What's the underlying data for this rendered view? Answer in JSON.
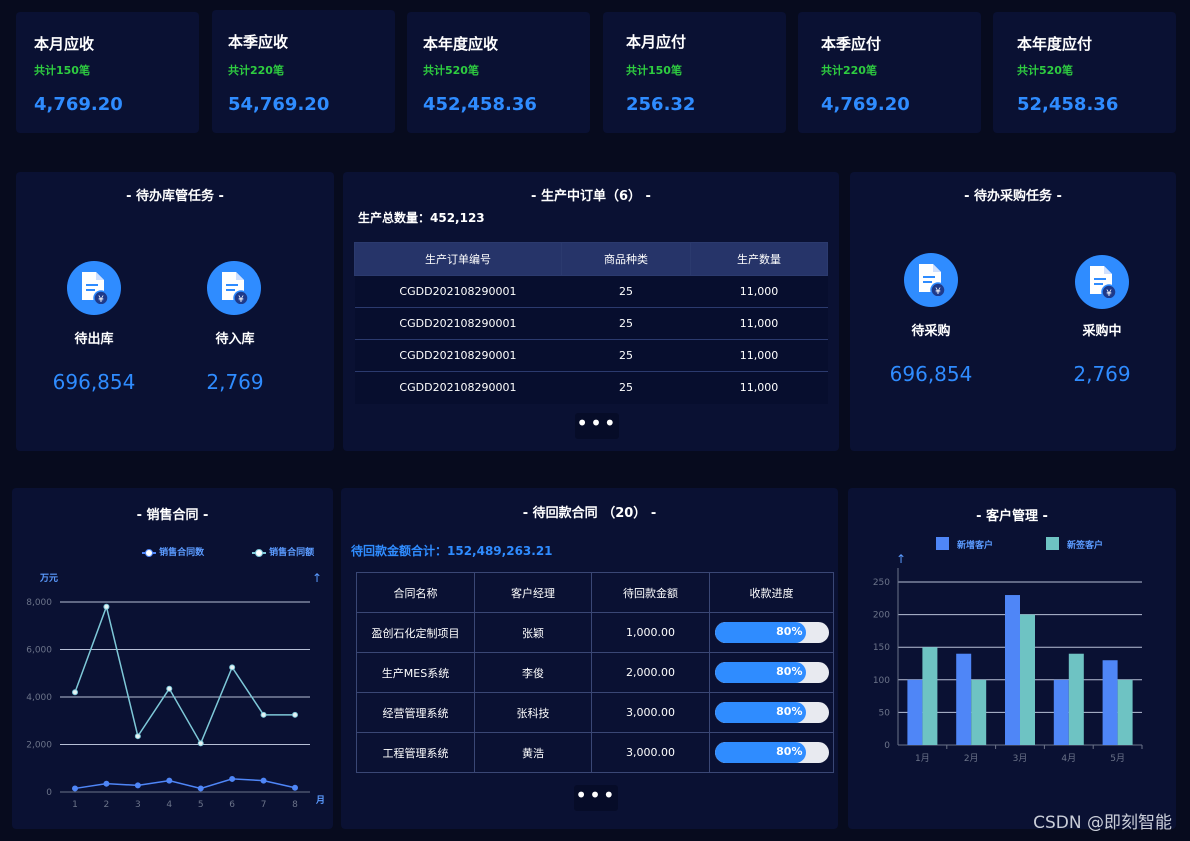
{
  "kpis": [
    {
      "title": "本月应收",
      "sub": "共计150笔",
      "value": "4,769.20"
    },
    {
      "title": "本季应收",
      "sub": "共计220笔",
      "value": "54,769.20"
    },
    {
      "title": "本年度应收",
      "sub": "共计520笔",
      "value": "452,458.36"
    },
    {
      "title": "本月应付",
      "sub": "共计150笔",
      "value": "256.32"
    },
    {
      "title": "本季应付",
      "sub": "共计220笔",
      "value": "4,769.20"
    },
    {
      "title": "本年度应付",
      "sub": "共计520笔",
      "value": "52,458.36"
    }
  ],
  "warehouse": {
    "title": "- 待办库管任务 -",
    "items": [
      {
        "label": "待出库",
        "value": "696,854",
        "icon": "document-yen-icon"
      },
      {
        "label": "待入库",
        "value": "2,769",
        "icon": "document-yen-icon"
      }
    ]
  },
  "production": {
    "title": "- 生产中订单（6） -",
    "total_label": "生产总数量：452,123",
    "columns": [
      "生产订单编号",
      "商品种类",
      "生产数量"
    ],
    "rows": [
      [
        "CGDD202108290001",
        "25",
        "11,000"
      ],
      [
        "CGDD202108290001",
        "25",
        "11,000"
      ],
      [
        "CGDD202108290001",
        "25",
        "11,000"
      ],
      [
        "CGDD202108290001",
        "25",
        "11,000"
      ]
    ],
    "more": "•••"
  },
  "purchase": {
    "title": "- 待办采购任务 -",
    "items": [
      {
        "label": "待采购",
        "value": "696,854",
        "icon": "document-yen-icon"
      },
      {
        "label": "采购中",
        "value": "2,769",
        "icon": "document-yen-icon"
      }
    ]
  },
  "sales": {
    "title": "- 销售合同 -",
    "legend": [
      "销售合同数",
      "销售合同额"
    ],
    "y_unit": "万元",
    "x_unit": "月",
    "y_arrow": "↑"
  },
  "receivable": {
    "title": "- 待回款合同 （20） -",
    "total_label": "待回款金额合计：152,489,263.21",
    "columns": [
      "合同名称",
      "客户经理",
      "待回款金额",
      "收款进度"
    ],
    "rows": [
      {
        "name": "盈创石化定制项目",
        "manager": "张颖",
        "amount": "1,000.00",
        "progress_label": "80%",
        "progress": 0.8
      },
      {
        "name": "生产MES系统",
        "manager": "李俊",
        "amount": "2,000.00",
        "progress_label": "80%",
        "progress": 0.8
      },
      {
        "name": "经营管理系统",
        "manager": "张科技",
        "amount": "3,000.00",
        "progress_label": "80%",
        "progress": 0.8
      },
      {
        "name": "工程管理系统",
        "manager": "黄浩",
        "amount": "3,000.00",
        "progress_label": "80%",
        "progress": 0.8
      }
    ],
    "more": "•••"
  },
  "customers": {
    "title": "- 客户管理 -",
    "y_arrow": "↑"
  },
  "chart_data": [
    {
      "type": "line",
      "x": [
        1,
        2,
        3,
        4,
        5,
        6,
        7,
        8
      ],
      "xlabel": "月",
      "ylabel": "万元",
      "ylim": [
        0,
        8000
      ],
      "yticks": [
        "0",
        "2,000",
        "4,000",
        "6,000",
        "8,000"
      ],
      "yticks_values": [
        0,
        2000,
        4000,
        6000,
        8000
      ],
      "grid": true,
      "legend_position": "top-right",
      "series": [
        {
          "name": "销售合同数",
          "color": "#4f86f7",
          "values": [
            150,
            350,
            280,
            480,
            150,
            550,
            480,
            180
          ]
        },
        {
          "name": "销售合同额",
          "color": "#7ec8d8",
          "values": [
            4200,
            7800,
            2350,
            4350,
            2050,
            5250,
            3250,
            3250
          ]
        }
      ]
    },
    {
      "type": "bar",
      "categories": [
        "1月",
        "2月",
        "3月",
        "4月",
        "5月"
      ],
      "ylim": [
        0,
        250
      ],
      "yticks": [
        0,
        50,
        100,
        150,
        200,
        250
      ],
      "grid": true,
      "legend_position": "top",
      "series": [
        {
          "name": "新增客户",
          "color": "#4f86f7",
          "values": [
            100,
            140,
            230,
            100,
            130
          ]
        },
        {
          "name": "新签客户",
          "color": "#6ec3c3",
          "values": [
            150,
            100,
            200,
            140,
            100
          ]
        }
      ]
    }
  ],
  "watermark": "CSDN @即刻智能"
}
